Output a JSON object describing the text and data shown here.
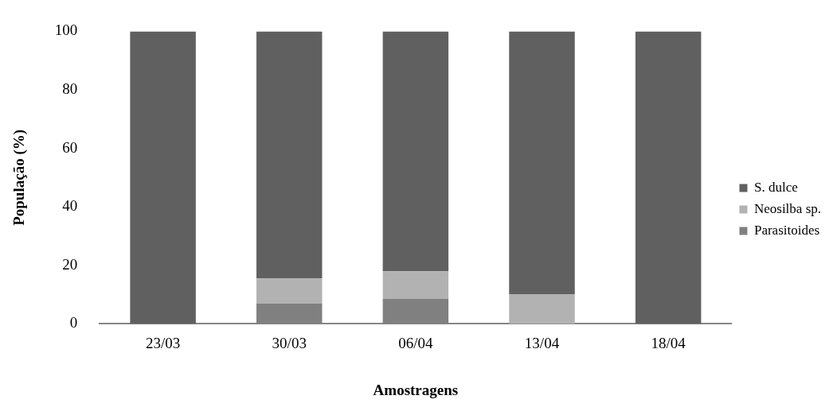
{
  "chart_data": {
    "type": "bar",
    "stacked": true,
    "xlabel": "Amostragens",
    "ylabel": "População (%)",
    "categories": [
      "23/03",
      "30/03",
      "06/04",
      "13/04",
      "18/04"
    ],
    "series": [
      {
        "name": "Parasitoides",
        "color": "#808080",
        "values": [
          0,
          7,
          8.5,
          0,
          0
        ]
      },
      {
        "name": "Neosilba sp.",
        "color": "#b2b2b2",
        "values": [
          0,
          8.5,
          9.5,
          10,
          0
        ]
      },
      {
        "name": "S. dulce",
        "color": "#606060",
        "values": [
          100,
          84.5,
          82,
          90,
          100
        ]
      }
    ],
    "ylim": [
      0,
      100
    ],
    "yticks": [
      0,
      20,
      40,
      60,
      80,
      100
    ],
    "grid": false,
    "legend": "right"
  }
}
